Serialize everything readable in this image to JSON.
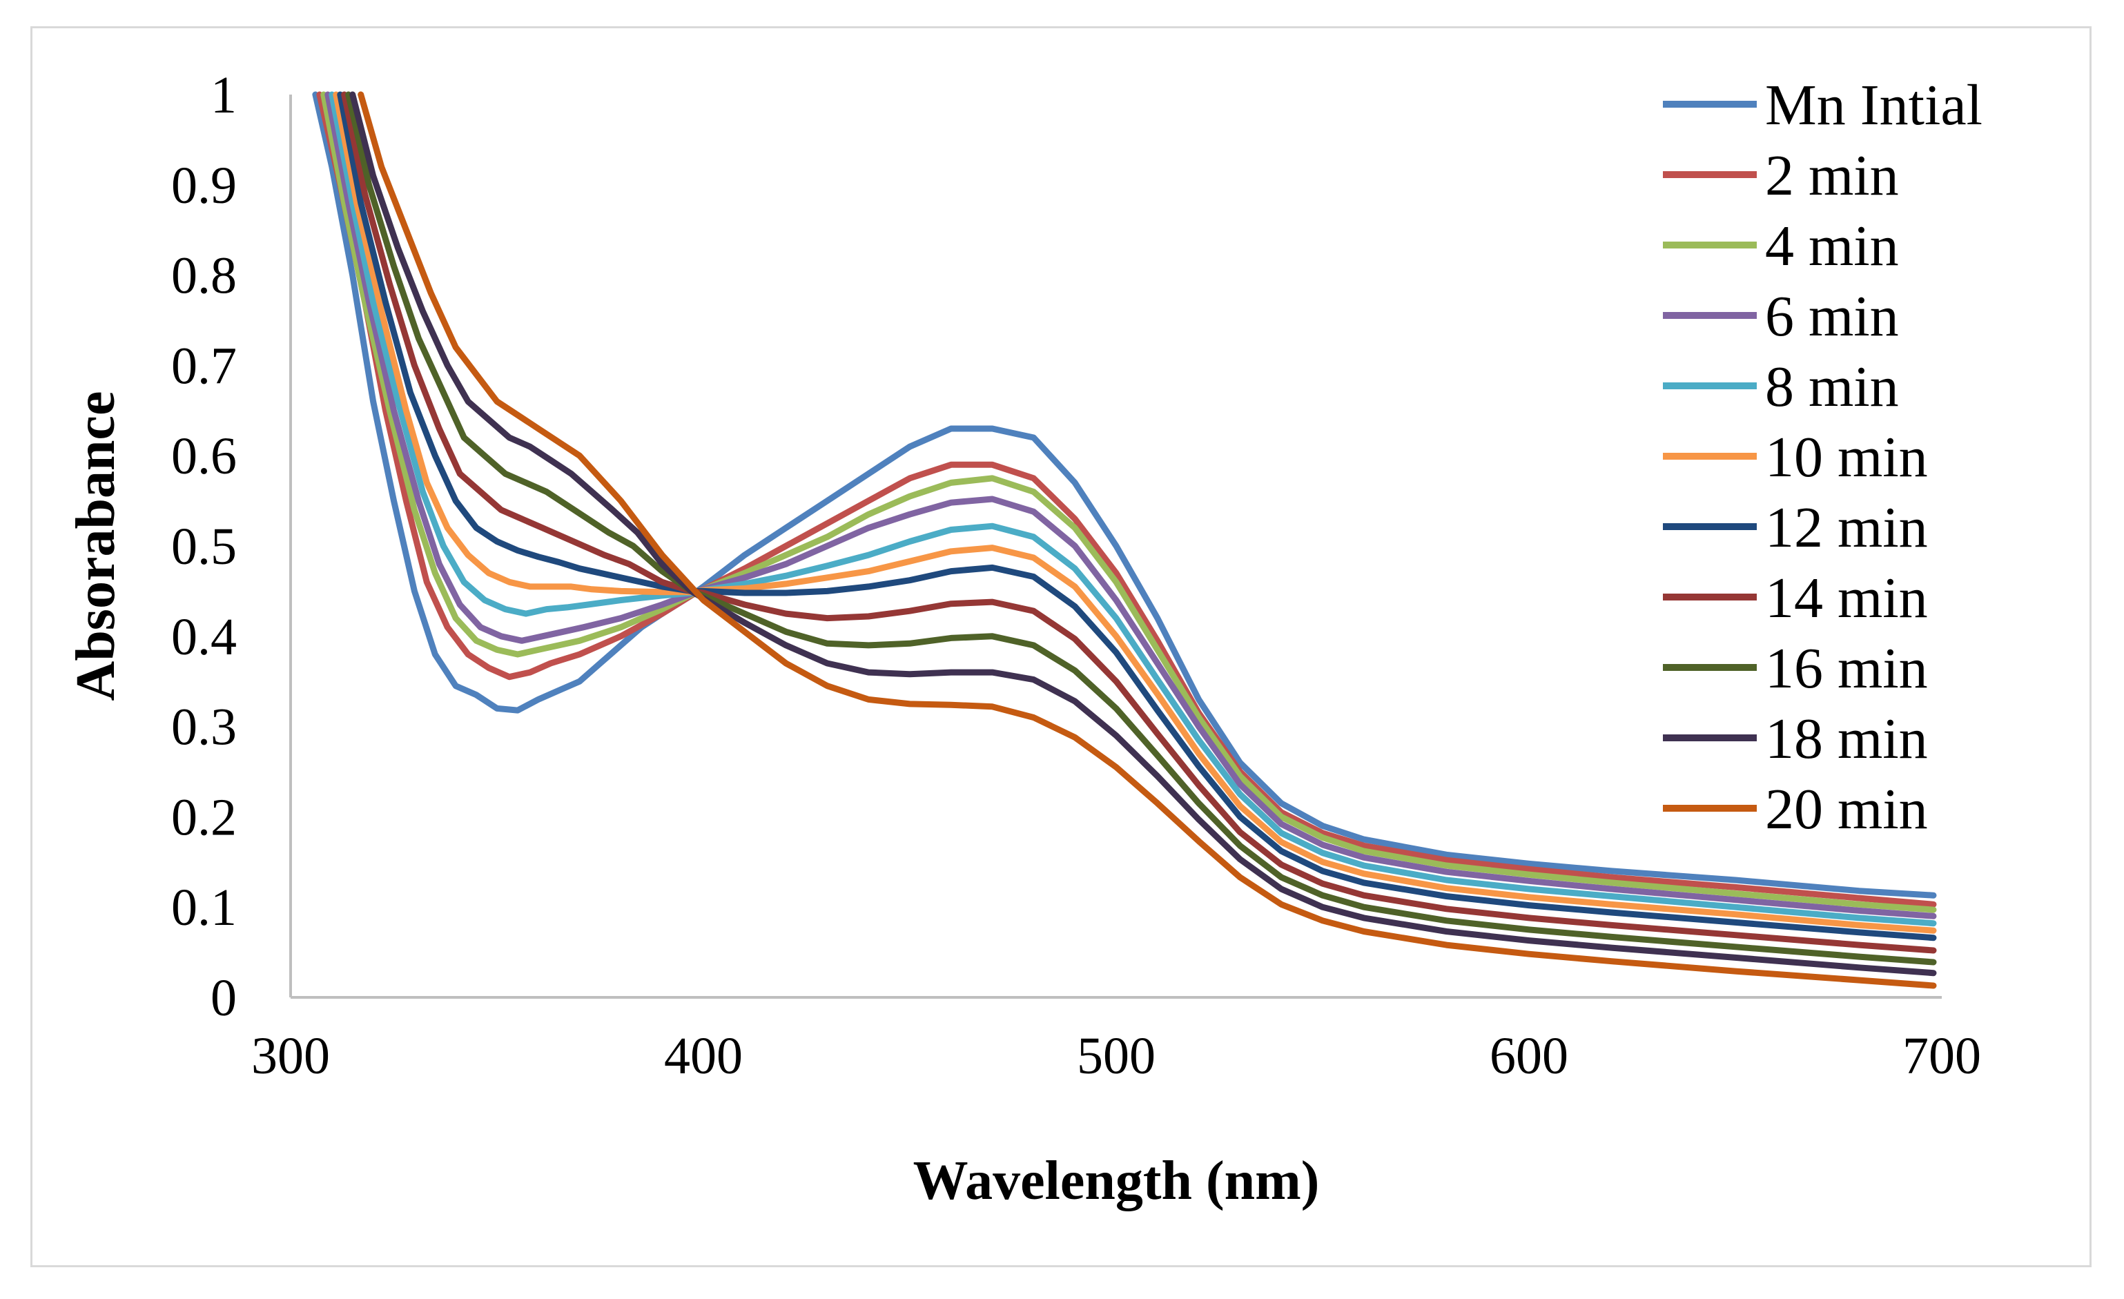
{
  "chart_data": {
    "type": "line",
    "title": "",
    "xlabel": "Wavelength (nm)",
    "ylabel": "Absorabance",
    "xlim": [
      300,
      700
    ],
    "ylim": [
      0,
      1
    ],
    "xticks": [
      300,
      400,
      500,
      600,
      700
    ],
    "yticks": [
      0,
      0.1,
      0.2,
      0.3,
      0.4,
      0.5,
      0.6,
      0.7,
      0.8,
      0.9,
      1
    ],
    "grid": false,
    "legend_position": "right",
    "series": [
      {
        "name": "Mn Intial",
        "color": "#4f81bd",
        "x": [
          306,
          310,
          315,
          320,
          325,
          330,
          335,
          340,
          345,
          350,
          355,
          360,
          365,
          370,
          375,
          380,
          385,
          390,
          397,
          400,
          410,
          420,
          430,
          440,
          450,
          460,
          470,
          480,
          490,
          500,
          510,
          520,
          530,
          540,
          550,
          560,
          580,
          600,
          620,
          650,
          680,
          698
        ],
        "y": [
          1.0,
          0.92,
          0.8,
          0.66,
          0.55,
          0.45,
          0.38,
          0.345,
          0.335,
          0.32,
          0.318,
          0.33,
          0.34,
          0.35,
          0.37,
          0.39,
          0.41,
          0.425,
          0.445,
          0.455,
          0.49,
          0.52,
          0.55,
          0.58,
          0.61,
          0.63,
          0.63,
          0.62,
          0.57,
          0.5,
          0.42,
          0.33,
          0.26,
          0.215,
          0.19,
          0.175,
          0.158,
          0.148,
          0.14,
          0.13,
          0.118,
          0.113
        ]
      },
      {
        "name": "2 min",
        "color": "#c0504d",
        "x": [
          307,
          312,
          318,
          323,
          328,
          333,
          338,
          343,
          348,
          353,
          358,
          363,
          370,
          380,
          390,
          397,
          400,
          410,
          420,
          430,
          440,
          450,
          460,
          470,
          480,
          490,
          500,
          510,
          520,
          530,
          540,
          550,
          560,
          580,
          600,
          620,
          650,
          680,
          698
        ],
        "y": [
          1.0,
          0.9,
          0.77,
          0.65,
          0.55,
          0.46,
          0.41,
          0.38,
          0.365,
          0.355,
          0.36,
          0.37,
          0.38,
          0.4,
          0.425,
          0.445,
          0.452,
          0.475,
          0.5,
          0.525,
          0.55,
          0.575,
          0.59,
          0.59,
          0.575,
          0.53,
          0.47,
          0.395,
          0.315,
          0.25,
          0.205,
          0.182,
          0.168,
          0.152,
          0.142,
          0.133,
          0.122,
          0.11,
          0.103
        ]
      },
      {
        "name": "4 min",
        "color": "#9bbb59",
        "x": [
          308,
          313,
          318,
          324,
          330,
          335,
          340,
          345,
          350,
          355,
          360,
          365,
          370,
          380,
          390,
          397,
          400,
          410,
          420,
          430,
          440,
          450,
          460,
          470,
          480,
          490,
          500,
          510,
          520,
          530,
          540,
          550,
          560,
          580,
          600,
          620,
          650,
          680,
          698
        ],
        "y": [
          1.0,
          0.88,
          0.77,
          0.65,
          0.54,
          0.47,
          0.42,
          0.395,
          0.385,
          0.38,
          0.385,
          0.39,
          0.395,
          0.41,
          0.43,
          0.446,
          0.452,
          0.47,
          0.49,
          0.51,
          0.535,
          0.555,
          0.57,
          0.575,
          0.56,
          0.52,
          0.46,
          0.385,
          0.31,
          0.245,
          0.2,
          0.177,
          0.162,
          0.146,
          0.136,
          0.127,
          0.115,
          0.103,
          0.097
        ]
      },
      {
        "name": "6 min",
        "color": "#8064a2",
        "x": [
          309,
          314,
          319,
          325,
          331,
          336,
          341,
          346,
          351,
          356,
          361,
          366,
          371,
          380,
          390,
          397,
          400,
          410,
          420,
          430,
          440,
          450,
          460,
          470,
          480,
          490,
          500,
          510,
          520,
          530,
          540,
          550,
          560,
          580,
          600,
          620,
          650,
          680,
          698
        ],
        "y": [
          1.0,
          0.88,
          0.77,
          0.65,
          0.55,
          0.48,
          0.435,
          0.41,
          0.4,
          0.395,
          0.4,
          0.405,
          0.41,
          0.42,
          0.435,
          0.447,
          0.452,
          0.465,
          0.48,
          0.5,
          0.52,
          0.535,
          0.548,
          0.552,
          0.538,
          0.5,
          0.44,
          0.37,
          0.3,
          0.236,
          0.192,
          0.169,
          0.155,
          0.139,
          0.129,
          0.12,
          0.108,
          0.096,
          0.09
        ]
      },
      {
        "name": "8 min",
        "color": "#4bacc6",
        "x": [
          310,
          315,
          320,
          326,
          332,
          337,
          342,
          347,
          352,
          357,
          362,
          367,
          372,
          380,
          390,
          397,
          400,
          410,
          420,
          430,
          440,
          450,
          460,
          470,
          480,
          490,
          500,
          510,
          520,
          530,
          540,
          550,
          560,
          580,
          600,
          620,
          650,
          680,
          698
        ],
        "y": [
          1.0,
          0.88,
          0.77,
          0.66,
          0.56,
          0.5,
          0.46,
          0.44,
          0.43,
          0.425,
          0.43,
          0.432,
          0.435,
          0.44,
          0.445,
          0.448,
          0.451,
          0.458,
          0.467,
          0.478,
          0.49,
          0.505,
          0.518,
          0.522,
          0.51,
          0.475,
          0.42,
          0.352,
          0.285,
          0.225,
          0.182,
          0.16,
          0.146,
          0.13,
          0.12,
          0.112,
          0.1,
          0.088,
          0.082
        ]
      },
      {
        "name": "10 min",
        "color": "#f79646",
        "x": [
          311,
          316,
          322,
          328,
          333,
          338,
          343,
          348,
          353,
          358,
          363,
          368,
          373,
          380,
          390,
          397,
          400,
          410,
          420,
          430,
          440,
          450,
          460,
          470,
          480,
          490,
          500,
          510,
          520,
          530,
          540,
          550,
          560,
          580,
          600,
          620,
          650,
          680,
          698
        ],
        "y": [
          1.0,
          0.88,
          0.76,
          0.65,
          0.57,
          0.52,
          0.49,
          0.47,
          0.46,
          0.455,
          0.455,
          0.455,
          0.452,
          0.45,
          0.449,
          0.449,
          0.451,
          0.453,
          0.458,
          0.465,
          0.472,
          0.483,
          0.494,
          0.498,
          0.487,
          0.455,
          0.4,
          0.336,
          0.27,
          0.212,
          0.172,
          0.15,
          0.137,
          0.121,
          0.111,
          0.103,
          0.092,
          0.08,
          0.074
        ]
      },
      {
        "name": "12 min",
        "color": "#1f497d",
        "x": [
          312,
          317,
          323,
          329,
          335,
          340,
          345,
          350,
          355,
          360,
          365,
          370,
          375,
          380,
          390,
          397,
          400,
          410,
          420,
          430,
          440,
          450,
          460,
          470,
          480,
          490,
          500,
          510,
          520,
          530,
          540,
          550,
          560,
          580,
          600,
          620,
          650,
          680,
          698
        ],
        "y": [
          1.0,
          0.88,
          0.77,
          0.67,
          0.6,
          0.55,
          0.52,
          0.505,
          0.495,
          0.488,
          0.482,
          0.475,
          0.47,
          0.465,
          0.455,
          0.45,
          0.45,
          0.448,
          0.448,
          0.45,
          0.455,
          0.462,
          0.472,
          0.476,
          0.466,
          0.433,
          0.382,
          0.318,
          0.256,
          0.2,
          0.162,
          0.14,
          0.127,
          0.112,
          0.102,
          0.094,
          0.083,
          0.072,
          0.066
        ]
      },
      {
        "name": "14 min",
        "color": "#953735",
        "x": [
          313,
          318,
          324,
          330,
          336,
          341,
          346,
          351,
          356,
          361,
          366,
          371,
          376,
          382,
          390,
          397,
          400,
          410,
          420,
          430,
          440,
          450,
          460,
          470,
          480,
          490,
          500,
          510,
          520,
          530,
          540,
          550,
          560,
          580,
          600,
          620,
          650,
          680,
          698
        ],
        "y": [
          1.0,
          0.89,
          0.79,
          0.7,
          0.63,
          0.58,
          0.56,
          0.54,
          0.53,
          0.52,
          0.51,
          0.5,
          0.49,
          0.48,
          0.46,
          0.45,
          0.448,
          0.435,
          0.425,
          0.42,
          0.422,
          0.428,
          0.436,
          0.438,
          0.428,
          0.397,
          0.35,
          0.292,
          0.235,
          0.183,
          0.147,
          0.126,
          0.113,
          0.098,
          0.088,
          0.08,
          0.069,
          0.058,
          0.052
        ]
      },
      {
        "name": "16 min",
        "color": "#4f6228",
        "x": [
          314,
          319,
          325,
          331,
          337,
          342,
          347,
          352,
          357,
          362,
          367,
          372,
          377,
          383,
          390,
          397,
          400,
          410,
          420,
          430,
          440,
          450,
          460,
          470,
          480,
          490,
          500,
          510,
          520,
          530,
          540,
          550,
          560,
          580,
          600,
          620,
          650,
          680,
          698
        ],
        "y": [
          1.0,
          0.9,
          0.81,
          0.73,
          0.67,
          0.62,
          0.6,
          0.58,
          0.57,
          0.56,
          0.545,
          0.53,
          0.515,
          0.5,
          0.472,
          0.45,
          0.445,
          0.425,
          0.405,
          0.392,
          0.39,
          0.392,
          0.398,
          0.4,
          0.39,
          0.362,
          0.32,
          0.268,
          0.215,
          0.168,
          0.133,
          0.113,
          0.1,
          0.085,
          0.075,
          0.067,
          0.056,
          0.045,
          0.039
        ]
      },
      {
        "name": "18 min",
        "color": "#3f3151",
        "x": [
          315,
          320,
          326,
          332,
          338,
          343,
          348,
          353,
          358,
          363,
          368,
          373,
          378,
          384,
          390,
          397,
          400,
          410,
          420,
          430,
          440,
          450,
          460,
          470,
          480,
          490,
          500,
          510,
          520,
          530,
          540,
          550,
          560,
          580,
          600,
          620,
          650,
          680,
          698
        ],
        "y": [
          1.0,
          0.91,
          0.83,
          0.76,
          0.7,
          0.66,
          0.64,
          0.62,
          0.61,
          0.595,
          0.58,
          0.56,
          0.54,
          0.515,
          0.48,
          0.45,
          0.442,
          0.415,
          0.39,
          0.37,
          0.36,
          0.358,
          0.36,
          0.36,
          0.352,
          0.328,
          0.29,
          0.245,
          0.197,
          0.153,
          0.12,
          0.1,
          0.088,
          0.073,
          0.063,
          0.055,
          0.044,
          0.033,
          0.027
        ]
      },
      {
        "name": "20 min",
        "color": "#c55a11",
        "x": [
          317,
          322,
          328,
          334,
          340,
          345,
          350,
          355,
          360,
          365,
          370,
          375,
          380,
          385,
          390,
          397,
          400,
          410,
          420,
          430,
          440,
          450,
          460,
          470,
          480,
          490,
          500,
          510,
          520,
          530,
          540,
          550,
          560,
          580,
          600,
          620,
          650,
          680,
          698
        ],
        "y": [
          1.0,
          0.92,
          0.85,
          0.78,
          0.72,
          0.69,
          0.66,
          0.645,
          0.63,
          0.615,
          0.6,
          0.575,
          0.55,
          0.52,
          0.49,
          0.455,
          0.44,
          0.405,
          0.37,
          0.345,
          0.33,
          0.325,
          0.324,
          0.322,
          0.31,
          0.288,
          0.255,
          0.215,
          0.173,
          0.133,
          0.103,
          0.085,
          0.073,
          0.058,
          0.048,
          0.04,
          0.029,
          0.019,
          0.013
        ]
      }
    ]
  }
}
